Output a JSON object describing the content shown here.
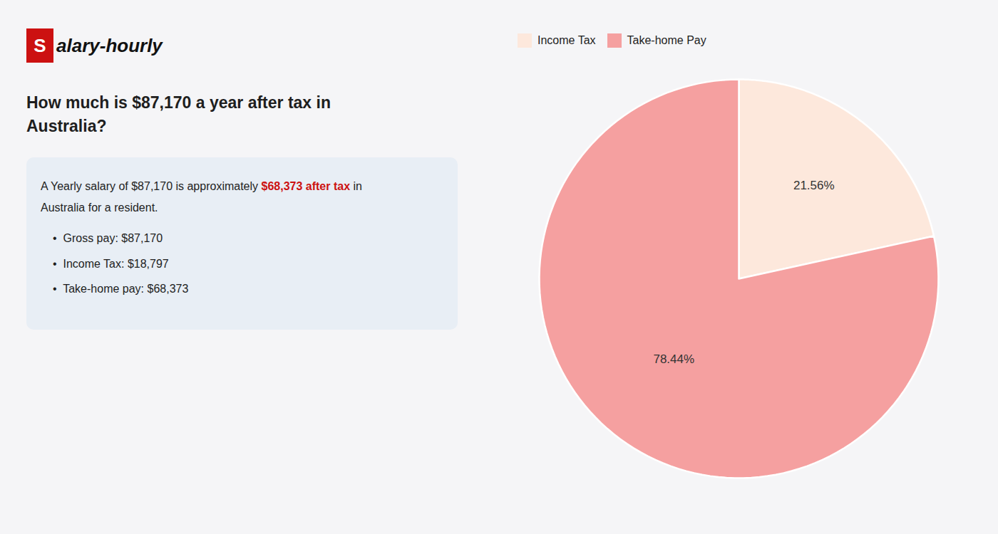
{
  "chart_data": {
    "type": "pie",
    "title": [
      "How much is $87,170 a year after tax in",
      "Australia?"
    ],
    "annotations": [
      [
        {
          "text": "S",
          "color": "#cc1111"
        },
        {
          "text": "alary-hourly"
        }
      ],
      [
        {
          "text": "A Yearly salary of $87,170 is approximately "
        },
        {
          "text": "$68,373 after tax",
          "color": "#cc1111"
        },
        {
          "text": " in"
        }
      ],
      [
        {
          "text": "Australia for a resident."
        }
      ],
      [
        {
          "text": "•  Gross pay: $87,170"
        }
      ],
      [
        {
          "text": "•  Income Tax: $18,797"
        }
      ],
      [
        {
          "text": "•  Take-home pay: $68,373"
        }
      ]
    ],
    "categories": [
      "Income Tax",
      "Take-home Pay"
    ],
    "values": [
      21.56,
      78.44
    ],
    "value_labels": [
      "21.56%",
      "78.44%"
    ],
    "colors": [
      "#fde8dc",
      "#f5a0a0"
    ],
    "data_labels": true,
    "legend": "upper left"
  }
}
